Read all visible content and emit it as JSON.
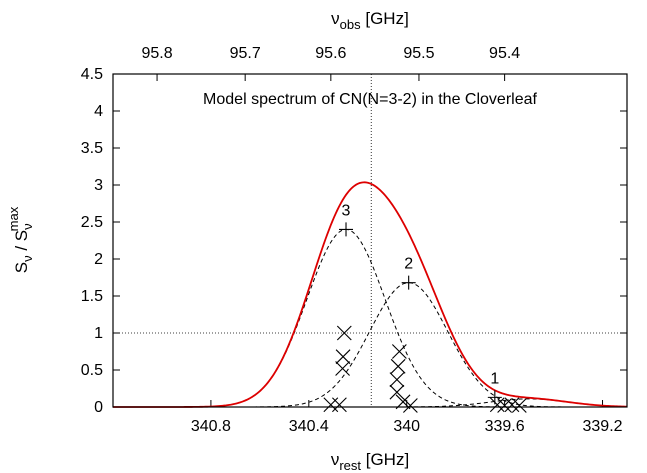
{
  "chart_data": {
    "type": "line",
    "title": "Model spectrum of CN(N=3-2) in the Cloverleaf",
    "xlabel": {
      "main": "ν",
      "sub": "rest",
      "unit": " [GHz]"
    },
    "x2label": {
      "main": "ν",
      "sub": "obs",
      "unit": " [GHz]"
    },
    "ylabel": {
      "a": "S",
      "a_sub": "ν",
      "sep": " / S",
      "b_sub": "ν",
      "b_sup": "max"
    },
    "xlim": [
      341.2,
      339.1
    ],
    "ylim": [
      0,
      4.5
    ],
    "x_ticks": [
      340.8,
      340.4,
      340.0,
      339.6,
      339.2
    ],
    "x_tick_labels": [
      "340.8",
      "340.4",
      "340",
      "339.6",
      "339.2"
    ],
    "y_ticks": [
      0,
      0.5,
      1,
      1.5,
      2,
      2.5,
      3,
      3.5,
      4,
      4.5
    ],
    "y_tick_labels": [
      "0",
      "0.5",
      "1",
      "1.5",
      "2",
      "2.5",
      "3",
      "3.5",
      "4",
      "4.5"
    ],
    "x2_ticks_rest": [
      341.02,
      340.66,
      340.31,
      339.95,
      339.6
    ],
    "x2_tick_labels": [
      "95.8",
      "95.7",
      "95.6",
      "95.5",
      "95.4"
    ],
    "vline_rest": 340.145,
    "hline_y": 1,
    "grid": false,
    "series": [
      {
        "kind": "gaussian",
        "style": "dashed",
        "color": "#000000",
        "center": 340.248,
        "amp": 2.4,
        "sigma": 0.16
      },
      {
        "kind": "gaussian",
        "style": "dashed",
        "color": "#000000",
        "center": 339.992,
        "amp": 1.68,
        "sigma": 0.16
      },
      {
        "kind": "gaussian",
        "style": "dashed",
        "color": "#000000",
        "center": 339.5,
        "amp": 0.11,
        "sigma": 0.16
      },
      {
        "kind": "sum",
        "style": "dotted",
        "color": "#000000"
      },
      {
        "kind": "sum",
        "style": "solid",
        "color": "#dd0000"
      }
    ],
    "group_labels": [
      {
        "label": "3",
        "x": 340.248,
        "y": 2.4
      },
      {
        "label": "2",
        "x": 339.992,
        "y": 1.68
      },
      {
        "label": "1",
        "x": 339.64,
        "y": 0.13
      }
    ],
    "crosses": [
      {
        "x": 340.248,
        "y": 2.4
      },
      {
        "x": 339.992,
        "y": 1.68
      },
      {
        "x": 339.64,
        "y": 0.13
      }
    ],
    "x_markers": [
      {
        "x": 340.255,
        "y": 1.0
      },
      {
        "x": 340.26,
        "y": 0.68
      },
      {
        "x": 340.262,
        "y": 0.52
      },
      {
        "x": 340.31,
        "y": 0.03
      },
      {
        "x": 340.275,
        "y": 0.03
      },
      {
        "x": 340.03,
        "y": 0.75
      },
      {
        "x": 340.035,
        "y": 0.55
      },
      {
        "x": 340.04,
        "y": 0.37
      },
      {
        "x": 340.04,
        "y": 0.2
      },
      {
        "x": 340.015,
        "y": 0.07
      },
      {
        "x": 339.985,
        "y": 0.02
      },
      {
        "x": 339.63,
        "y": 0.03
      },
      {
        "x": 339.6,
        "y": 0.02
      },
      {
        "x": 339.57,
        "y": 0.03
      },
      {
        "x": 339.54,
        "y": 0.02
      }
    ]
  }
}
